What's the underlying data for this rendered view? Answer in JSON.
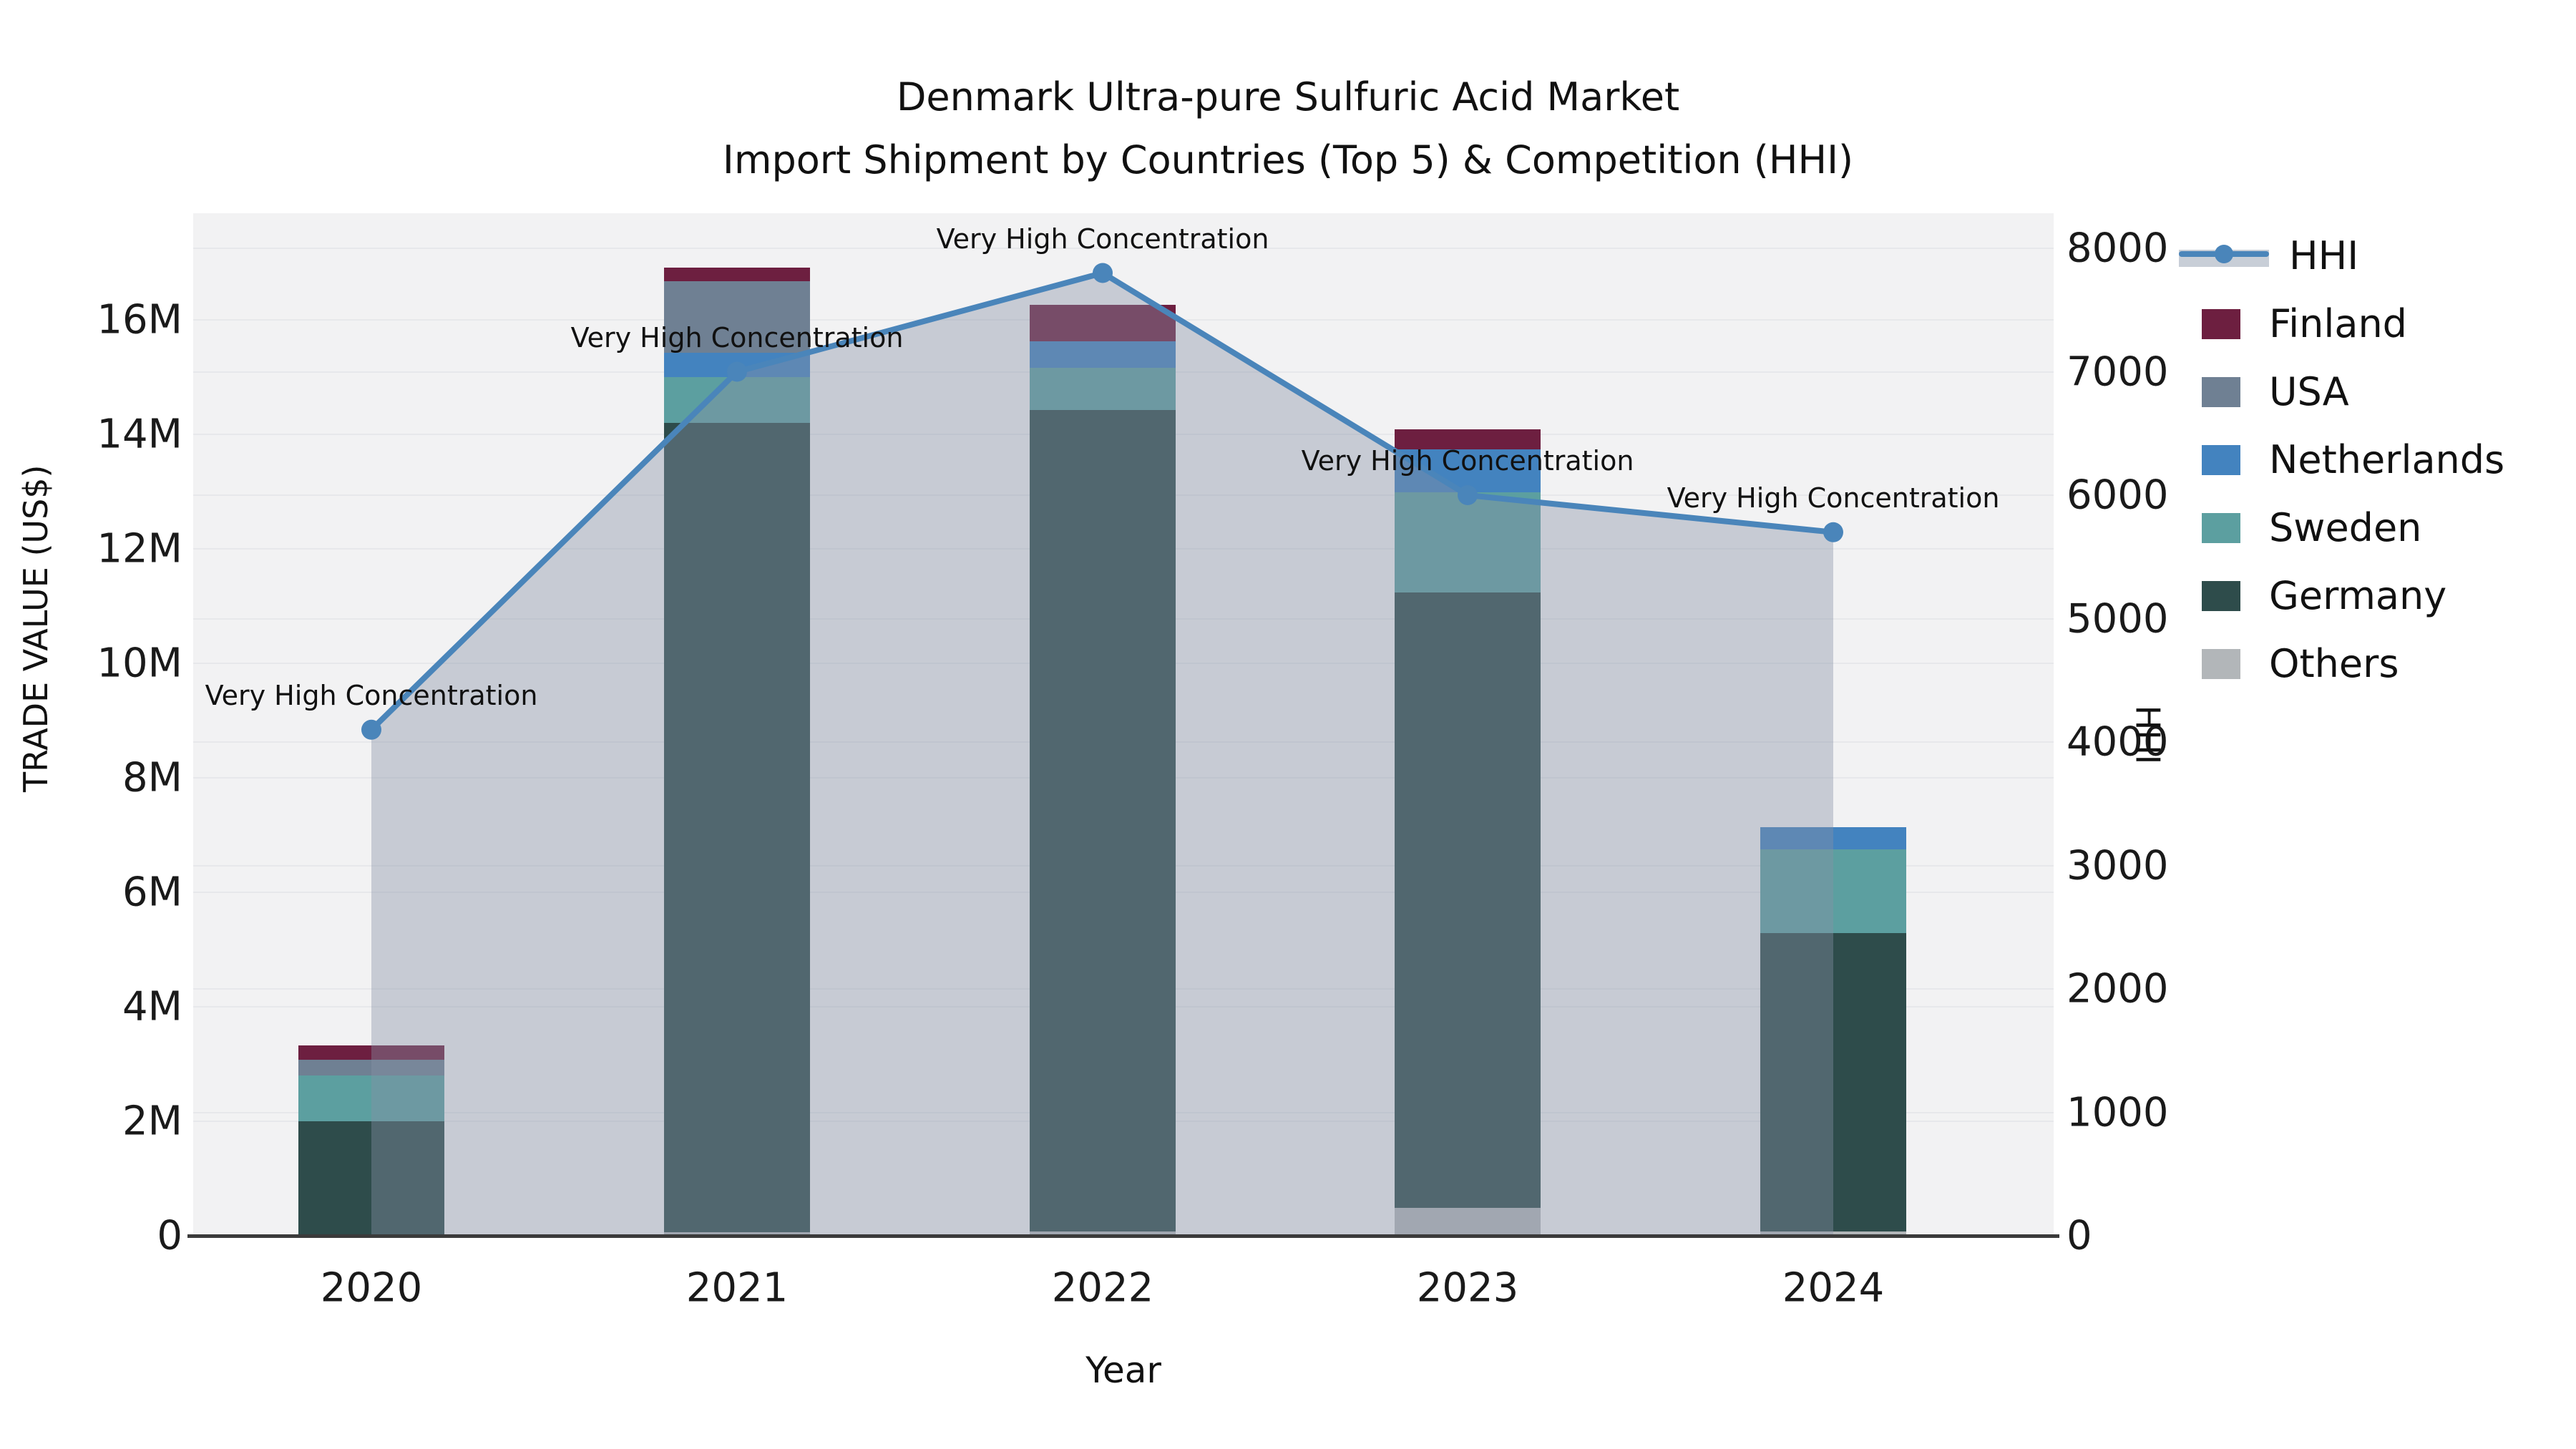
{
  "title": {
    "line1": "Denmark Ultra-pure Sulfuric Acid Market",
    "line2": "Import Shipment by Countries (Top 5) & Competition (HHI)"
  },
  "chart_data": {
    "type": "bar",
    "subtype": "stacked-bar-with-line",
    "title": "Denmark Ultra-pure Sulfuric Acid Market",
    "subtitle": "Import Shipment by Countries (Top 5) & Competition (HHI)",
    "categories": [
      "2020",
      "2021",
      "2022",
      "2023",
      "2024"
    ],
    "xlabel": "Year",
    "ylabel_left": "TRADE VALUE (US$)",
    "ylabel_right": "HHI",
    "stack_order_bottom_to_top": [
      "Others",
      "Germany",
      "Sweden",
      "Netherlands",
      "USA",
      "Finland"
    ],
    "series": [
      {
        "name": "Finland",
        "type": "bar",
        "color": "#6d1f40",
        "values_musd": [
          0.24,
          0.23,
          0.63,
          0.35,
          0
        ]
      },
      {
        "name": "USA",
        "type": "bar",
        "color": "#6f8093",
        "values_musd": [
          0.28,
          1.25,
          0,
          0,
          0
        ]
      },
      {
        "name": "Netherlands",
        "type": "bar",
        "color": "#4383bf",
        "values_musd": [
          0,
          0.43,
          0.47,
          0.75,
          0.39
        ]
      },
      {
        "name": "Sweden",
        "type": "bar",
        "color": "#5c9fa0",
        "values_musd": [
          0.8,
          0.8,
          0.73,
          1.75,
          1.46
        ]
      },
      {
        "name": "Germany",
        "type": "bar",
        "color": "#2e4c4b",
        "values_musd": [
          1.97,
          14.14,
          14.35,
          10.75,
          5.21
        ]
      },
      {
        "name": "Others",
        "type": "bar",
        "color": "#b2b6b9",
        "values_musd": [
          0.03,
          0.06,
          0.08,
          0.49,
          0.08
        ]
      }
    ],
    "line_series": {
      "name": "HHI",
      "type": "line",
      "axis": "right",
      "color": "#4a85ba",
      "fill_color": "rgba(134,146,166,0.40)",
      "values": [
        4100,
        7000,
        7800,
        6000,
        5700
      ]
    },
    "annotations": [
      {
        "text": "Very High Concentration",
        "category": "2020",
        "hhi": 4100
      },
      {
        "text": "Very High Concentration",
        "category": "2021",
        "hhi": 7000
      },
      {
        "text": "Very High Concentration",
        "category": "2022",
        "hhi": 7800
      },
      {
        "text": "Very High Concentration",
        "category": "2023",
        "hhi": 6000
      },
      {
        "text": "Very High Concentration",
        "category": "2024",
        "hhi": 5700
      }
    ],
    "yaxis_left": {
      "ticks": [
        "0",
        "2M",
        "4M",
        "6M",
        "8M",
        "10M",
        "12M",
        "14M",
        "16M"
      ],
      "tick_values_musd": [
        0,
        2,
        4,
        6,
        8,
        10,
        12,
        14,
        16
      ],
      "range_musd": [
        0,
        17.86
      ]
    },
    "yaxis_right": {
      "ticks": [
        "0",
        "1000",
        "2000",
        "3000",
        "4000",
        "5000",
        "6000",
        "7000",
        "8000"
      ],
      "tick_values": [
        0,
        1000,
        2000,
        3000,
        4000,
        5000,
        6000,
        7000,
        8000
      ],
      "range": [
        0,
        8284
      ]
    },
    "grid": true,
    "legend_position": "right"
  },
  "legend": {
    "items": [
      {
        "label": "HHI",
        "type": "line",
        "color": "#4a85ba",
        "band_color": "rgba(134,146,166,0.45)"
      },
      {
        "label": "Finland",
        "type": "swatch",
        "color": "#6d1f40"
      },
      {
        "label": "USA",
        "type": "swatch",
        "color": "#6f8093"
      },
      {
        "label": "Netherlands",
        "type": "swatch",
        "color": "#4383bf"
      },
      {
        "label": "Sweden",
        "type": "swatch",
        "color": "#5c9fa0"
      },
      {
        "label": "Germany",
        "type": "swatch",
        "color": "#2e4c4b"
      },
      {
        "label": "Others",
        "type": "swatch",
        "color": "#b2b6b9"
      }
    ]
  },
  "colors": {
    "plot_background": "#f2f2f3",
    "page_background": "#ffffff",
    "gridline": "#e7e8eb",
    "axis_line": "#3b3b3b",
    "text": "#111111",
    "hhi_line": "#4a85ba",
    "hhi_fill": "rgba(134,146,166,0.40)"
  }
}
